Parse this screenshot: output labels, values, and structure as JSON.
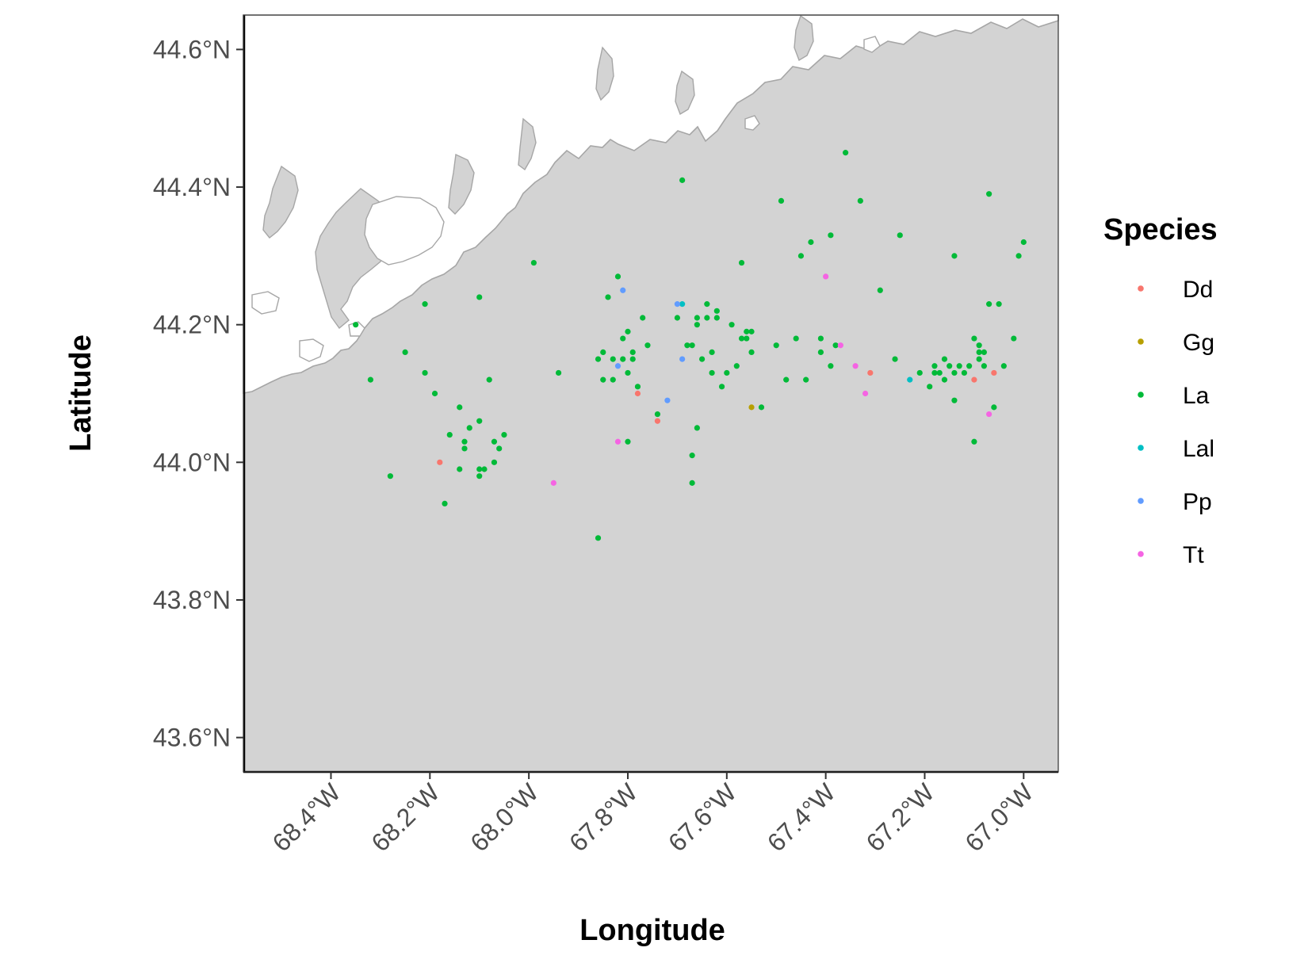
{
  "chart_data": {
    "type": "scatter",
    "xlabel": "Longitude",
    "ylabel": "Latitude",
    "xlim": [
      -68.577,
      -66.93
    ],
    "ylim": [
      43.55,
      44.65
    ],
    "x_ticks": [
      -68.4,
      -68.2,
      -68.0,
      -67.8,
      -67.6,
      -67.4,
      -67.2,
      -67.0
    ],
    "x_tick_labels": [
      "68.4°W",
      "68.2°W",
      "68.0°W",
      "67.8°W",
      "67.6°W",
      "67.4°W",
      "67.2°W",
      "67.0°W"
    ],
    "y_ticks": [
      43.6,
      43.8,
      44.0,
      44.2,
      44.4,
      44.6
    ],
    "y_tick_labels": [
      "43.6°N",
      "43.8°N",
      "44.0°N",
      "44.2°N",
      "44.4°N",
      "44.6°N"
    ],
    "grid": false,
    "background_colors": {
      "ocean": "#d3d3d3",
      "land": "#ffffff",
      "coast": "#a6a6a6"
    },
    "legend": {
      "title": "Species",
      "placement": "right",
      "entries": [
        {
          "name": "Dd",
          "color": "#F8766D"
        },
        {
          "name": "Gg",
          "color": "#B79F00"
        },
        {
          "name": "La",
          "color": "#00BA38"
        },
        {
          "name": "Lal",
          "color": "#00BFC4"
        },
        {
          "name": "Pp",
          "color": "#619CFF"
        },
        {
          "name": "Tt",
          "color": "#F564E3"
        }
      ]
    },
    "series": [
      {
        "name": "Dd",
        "color": "#F8766D",
        "points": [
          [
            -68.18,
            44.0
          ],
          [
            -67.78,
            44.1
          ],
          [
            -67.74,
            44.06
          ],
          [
            -67.31,
            44.13
          ],
          [
            -67.1,
            44.12
          ],
          [
            -67.06,
            44.13
          ]
        ]
      },
      {
        "name": "Gg",
        "color": "#B79F00",
        "points": [
          [
            -67.55,
            44.08
          ]
        ]
      },
      {
        "name": "La",
        "color": "#00BA38",
        "points": [
          [
            -68.35,
            44.2
          ],
          [
            -68.32,
            44.12
          ],
          [
            -68.28,
            43.98
          ],
          [
            -68.25,
            44.16
          ],
          [
            -68.21,
            44.23
          ],
          [
            -68.21,
            44.13
          ],
          [
            -68.19,
            44.1
          ],
          [
            -68.17,
            43.94
          ],
          [
            -68.16,
            44.04
          ],
          [
            -68.14,
            44.08
          ],
          [
            -68.14,
            43.99
          ],
          [
            -68.13,
            44.03
          ],
          [
            -68.13,
            44.02
          ],
          [
            -68.12,
            44.05
          ],
          [
            -68.1,
            44.06
          ],
          [
            -68.1,
            43.99
          ],
          [
            -68.1,
            43.98
          ],
          [
            -68.09,
            43.99
          ],
          [
            -68.08,
            44.12
          ],
          [
            -68.07,
            44.03
          ],
          [
            -68.07,
            44.0
          ],
          [
            -68.06,
            44.02
          ],
          [
            -68.05,
            44.04
          ],
          [
            -68.1,
            44.24
          ],
          [
            -67.99,
            44.29
          ],
          [
            -67.94,
            44.13
          ],
          [
            -67.86,
            43.89
          ],
          [
            -67.85,
            44.16
          ],
          [
            -67.86,
            44.15
          ],
          [
            -67.85,
            44.12
          ],
          [
            -67.84,
            44.24
          ],
          [
            -67.83,
            44.15
          ],
          [
            -67.83,
            44.12
          ],
          [
            -67.81,
            44.18
          ],
          [
            -67.81,
            44.15
          ],
          [
            -67.8,
            44.19
          ],
          [
            -67.8,
            44.13
          ],
          [
            -67.79,
            44.16
          ],
          [
            -67.79,
            44.15
          ],
          [
            -67.8,
            44.03
          ],
          [
            -67.78,
            44.11
          ],
          [
            -67.77,
            44.21
          ],
          [
            -67.76,
            44.17
          ],
          [
            -67.74,
            44.07
          ],
          [
            -67.82,
            44.27
          ],
          [
            -67.7,
            44.21
          ],
          [
            -67.69,
            44.41
          ],
          [
            -67.68,
            44.17
          ],
          [
            -67.67,
            44.17
          ],
          [
            -67.66,
            44.21
          ],
          [
            -67.66,
            44.2
          ],
          [
            -67.65,
            44.15
          ],
          [
            -67.64,
            44.23
          ],
          [
            -67.64,
            44.21
          ],
          [
            -67.63,
            44.16
          ],
          [
            -67.63,
            44.13
          ],
          [
            -67.62,
            44.22
          ],
          [
            -67.62,
            44.21
          ],
          [
            -67.61,
            44.11
          ],
          [
            -67.6,
            44.13
          ],
          [
            -67.59,
            44.2
          ],
          [
            -67.58,
            44.14
          ],
          [
            -67.57,
            44.18
          ],
          [
            -67.56,
            44.18
          ],
          [
            -67.56,
            44.19
          ],
          [
            -67.55,
            44.19
          ],
          [
            -67.55,
            44.16
          ],
          [
            -67.53,
            44.08
          ],
          [
            -67.67,
            44.01
          ],
          [
            -67.66,
            44.05
          ],
          [
            -67.67,
            43.97
          ],
          [
            -67.57,
            44.29
          ],
          [
            -67.5,
            44.17
          ],
          [
            -67.49,
            44.38
          ],
          [
            -67.48,
            44.12
          ],
          [
            -67.46,
            44.18
          ],
          [
            -67.45,
            44.3
          ],
          [
            -67.44,
            44.12
          ],
          [
            -67.43,
            44.32
          ],
          [
            -67.41,
            44.18
          ],
          [
            -67.41,
            44.16
          ],
          [
            -67.39,
            44.33
          ],
          [
            -67.39,
            44.14
          ],
          [
            -67.38,
            44.17
          ],
          [
            -67.36,
            44.45
          ],
          [
            -67.33,
            44.38
          ],
          [
            -67.29,
            44.25
          ],
          [
            -67.26,
            44.15
          ],
          [
            -67.25,
            44.33
          ],
          [
            -67.21,
            44.13
          ],
          [
            -67.19,
            44.11
          ],
          [
            -67.18,
            44.14
          ],
          [
            -67.18,
            44.13
          ],
          [
            -67.17,
            44.13
          ],
          [
            -67.16,
            44.15
          ],
          [
            -67.16,
            44.12
          ],
          [
            -67.15,
            44.14
          ],
          [
            -67.14,
            44.13
          ],
          [
            -67.14,
            44.09
          ],
          [
            -67.13,
            44.14
          ],
          [
            -67.12,
            44.13
          ],
          [
            -67.11,
            44.14
          ],
          [
            -67.1,
            44.18
          ],
          [
            -67.1,
            44.03
          ],
          [
            -67.09,
            44.17
          ],
          [
            -67.09,
            44.16
          ],
          [
            -67.09,
            44.15
          ],
          [
            -67.08,
            44.16
          ],
          [
            -67.08,
            44.14
          ],
          [
            -67.07,
            44.39
          ],
          [
            -67.07,
            44.23
          ],
          [
            -67.06,
            44.08
          ],
          [
            -67.05,
            44.23
          ],
          [
            -67.04,
            44.14
          ],
          [
            -67.02,
            44.18
          ],
          [
            -67.01,
            44.3
          ],
          [
            -67.0,
            44.32
          ],
          [
            -67.14,
            44.3
          ]
        ]
      },
      {
        "name": "Lal",
        "color": "#00BFC4",
        "points": [
          [
            -67.69,
            44.23
          ],
          [
            -67.23,
            44.12
          ]
        ]
      },
      {
        "name": "Pp",
        "color": "#619CFF",
        "points": [
          [
            -67.81,
            44.25
          ],
          [
            -67.82,
            44.14
          ],
          [
            -67.69,
            44.15
          ],
          [
            -67.7,
            44.23
          ],
          [
            -67.72,
            44.09
          ]
        ]
      },
      {
        "name": "Tt",
        "color": "#F564E3",
        "points": [
          [
            -67.95,
            43.97
          ],
          [
            -67.82,
            44.03
          ],
          [
            -67.4,
            44.27
          ],
          [
            -67.37,
            44.17
          ],
          [
            -67.34,
            44.14
          ],
          [
            -67.32,
            44.1
          ],
          [
            -67.07,
            44.07
          ]
        ]
      }
    ]
  }
}
